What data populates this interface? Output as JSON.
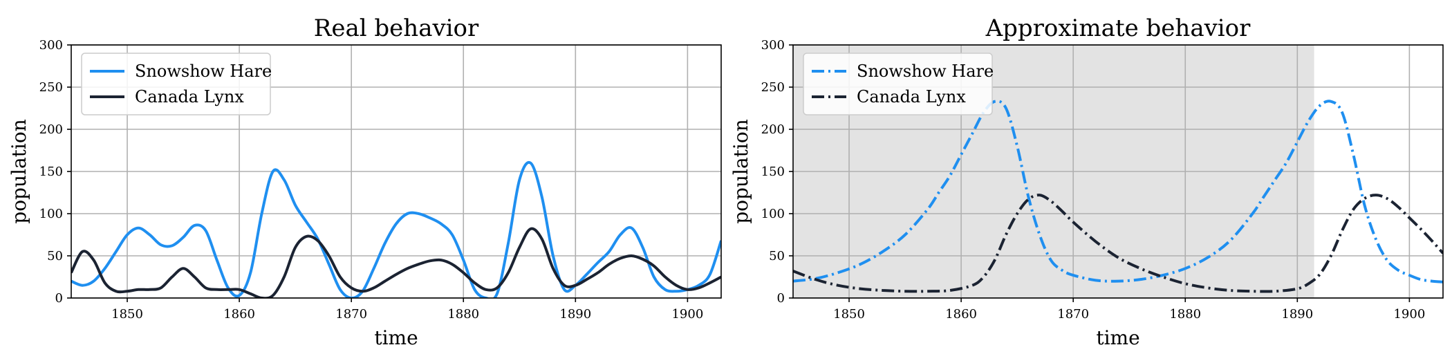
{
  "chart_data": [
    {
      "type": "line",
      "title": "Real behavior",
      "xlabel": "time",
      "ylabel": "population",
      "xlim": [
        1845,
        1903
      ],
      "ylim": [
        0,
        300
      ],
      "xticks": [
        1850,
        1860,
        1870,
        1880,
        1890,
        1900
      ],
      "yticks": [
        0,
        50,
        100,
        150,
        200,
        250,
        300
      ],
      "grid": true,
      "legend": "top-left",
      "series": [
        {
          "name": "Snowshow Hare",
          "color": "#1f8ff0",
          "linestyle": "solid",
          "x": [
            1845,
            1846,
            1847,
            1848,
            1849,
            1850,
            1851,
            1852,
            1853,
            1854,
            1855,
            1856,
            1857,
            1858,
            1859,
            1860,
            1861,
            1862,
            1863,
            1864,
            1865,
            1866,
            1867,
            1868,
            1869,
            1870,
            1871,
            1872,
            1873,
            1874,
            1875,
            1876,
            1877,
            1878,
            1879,
            1880,
            1881,
            1882,
            1883,
            1884,
            1885,
            1886,
            1887,
            1888,
            1889,
            1890,
            1891,
            1892,
            1893,
            1894,
            1895,
            1896,
            1897,
            1898,
            1899,
            1900,
            1901,
            1902,
            1903
          ],
          "y": [
            20,
            15,
            20,
            35,
            55,
            75,
            83,
            75,
            63,
            62,
            72,
            86,
            80,
            45,
            12,
            3,
            30,
            100,
            150,
            140,
            110,
            90,
            70,
            40,
            10,
            0,
            8,
            35,
            65,
            88,
            100,
            100,
            95,
            88,
            75,
            45,
            10,
            0,
            5,
            65,
            140,
            160,
            120,
            50,
            10,
            15,
            28,
            42,
            55,
            75,
            83,
            60,
            25,
            10,
            8,
            10,
            15,
            28,
            68
          ]
        },
        {
          "name": "Canada Lynx",
          "color": "#1b2332",
          "linestyle": "solid",
          "x": [
            1845,
            1846,
            1847,
            1848,
            1849,
            1850,
            1851,
            1852,
            1853,
            1854,
            1855,
            1856,
            1857,
            1858,
            1859,
            1860,
            1861,
            1862,
            1863,
            1864,
            1865,
            1866,
            1867,
            1868,
            1869,
            1870,
            1871,
            1872,
            1873,
            1874,
            1875,
            1876,
            1877,
            1878,
            1879,
            1880,
            1881,
            1882,
            1883,
            1884,
            1885,
            1886,
            1887,
            1888,
            1889,
            1890,
            1891,
            1892,
            1893,
            1894,
            1895,
            1896,
            1897,
            1898,
            1899,
            1900,
            1901,
            1902,
            1903
          ],
          "y": [
            30,
            55,
            45,
            18,
            8,
            8,
            10,
            10,
            12,
            25,
            35,
            25,
            12,
            10,
            10,
            10,
            5,
            0,
            3,
            25,
            60,
            73,
            68,
            50,
            25,
            12,
            8,
            12,
            20,
            28,
            35,
            40,
            44,
            45,
            40,
            30,
            18,
            10,
            12,
            30,
            60,
            82,
            70,
            35,
            15,
            15,
            22,
            30,
            40,
            47,
            50,
            46,
            38,
            25,
            15,
            10,
            12,
            18,
            25
          ]
        }
      ]
    },
    {
      "type": "line",
      "title": "Approximate behavior",
      "xlabel": "time",
      "ylabel": "population",
      "xlim": [
        1845,
        1903
      ],
      "ylim": [
        0,
        300
      ],
      "xticks": [
        1850,
        1860,
        1870,
        1880,
        1890,
        1900
      ],
      "yticks": [
        0,
        50,
        100,
        150,
        200,
        250,
        300
      ],
      "grid": true,
      "legend": "top-left",
      "shaded_region": {
        "x": [
          1845,
          1891.5
        ],
        "color": "#e3e3e3"
      },
      "series": [
        {
          "name": "Snowshow Hare",
          "color": "#1f8ff0",
          "linestyle": "dashdot",
          "x": [
            1845,
            1847,
            1849,
            1851,
            1853,
            1855,
            1857,
            1858,
            1859,
            1860,
            1861,
            1862,
            1863,
            1864,
            1865,
            1866,
            1867,
            1868,
            1869,
            1870,
            1872,
            1874,
            1876,
            1878,
            1880,
            1882,
            1884,
            1886,
            1887,
            1888,
            1889,
            1890,
            1891,
            1892,
            1893,
            1894,
            1895,
            1896,
            1897,
            1898,
            1899,
            1900,
            1901,
            1902,
            1903
          ],
          "y": [
            20,
            23,
            30,
            40,
            55,
            75,
            105,
            125,
            145,
            170,
            195,
            220,
            233,
            225,
            180,
            120,
            75,
            45,
            33,
            27,
            21,
            20,
            22,
            27,
            35,
            48,
            68,
            100,
            120,
            140,
            160,
            185,
            210,
            228,
            233,
            220,
            170,
            110,
            70,
            45,
            33,
            27,
            22,
            20,
            19
          ]
        },
        {
          "name": "Canada Lynx",
          "color": "#1b2332",
          "linestyle": "dashdot",
          "x": [
            1845,
            1847,
            1849,
            1851,
            1853,
            1855,
            1857,
            1859,
            1861,
            1862,
            1863,
            1864,
            1865,
            1866,
            1867,
            1868,
            1869,
            1870,
            1872,
            1874,
            1876,
            1878,
            1880,
            1882,
            1884,
            1886,
            1888,
            1890,
            1891,
            1892,
            1893,
            1894,
            1895,
            1896,
            1897,
            1898,
            1899,
            1900,
            1901,
            1902,
            1903
          ],
          "y": [
            32,
            22,
            15,
            11,
            9,
            8,
            8,
            9,
            15,
            25,
            45,
            75,
            100,
            117,
            122,
            115,
            103,
            90,
            67,
            48,
            35,
            25,
            17,
            12,
            9,
            8,
            8,
            11,
            17,
            28,
            50,
            80,
            105,
            118,
            122,
            118,
            108,
            95,
            82,
            68,
            53
          ]
        }
      ]
    }
  ]
}
